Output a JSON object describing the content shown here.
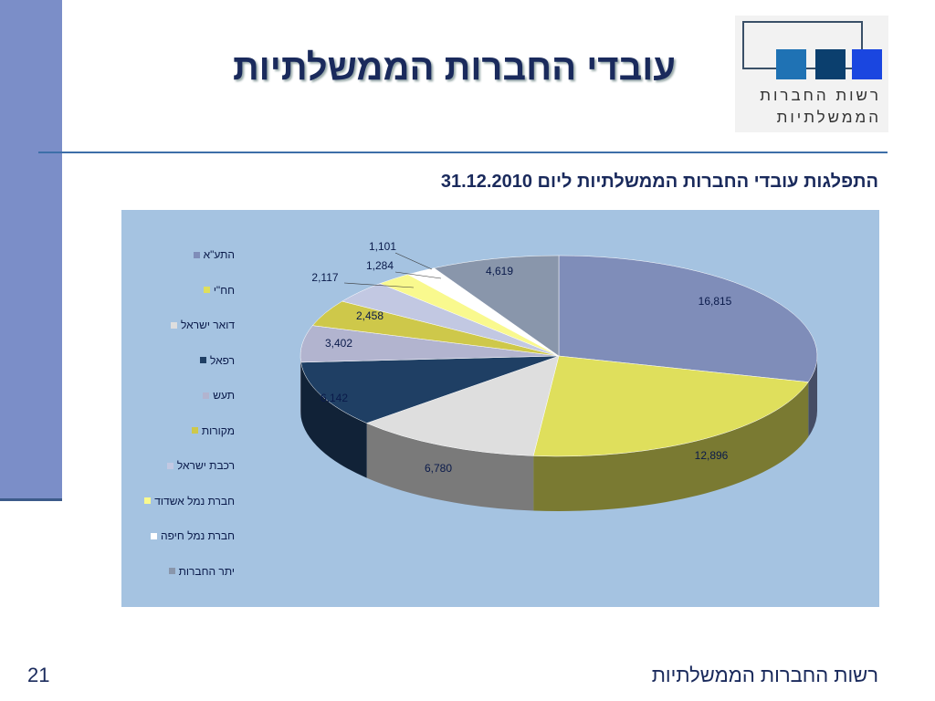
{
  "title": "עובדי החברות הממשלתיות",
  "logo": {
    "line1": "רשות החברות",
    "line2": "הממשלתיות"
  },
  "subtitle": "התפלגות עובדי החברות הממשלתיות ליום  31.12.2010",
  "footer": {
    "page_number": "21",
    "org": "רשות החברות הממשלתיות"
  },
  "chart_data": {
    "type": "pie",
    "title": "התפלגות עובדי החברות הממשלתיות ליום 31.12.2010",
    "labels": [
      "התע\"א",
      "חח\"י",
      "דואר ישראל",
      "רפאל",
      "תעש",
      "מקורות",
      "רכבת ישראל",
      "חברת נמל אשדוד",
      "חברת נמל חיפה",
      "יתר החברות"
    ],
    "values": [
      16815,
      12896,
      6780,
      6142,
      3402,
      2458,
      2117,
      1284,
      1101,
      4619
    ],
    "value_labels": [
      "16,815",
      "12,896",
      "6,780",
      "6,142",
      "3,402",
      "2,458",
      "2,117",
      "1,284",
      "1,101",
      "4,619"
    ],
    "colors": [
      "#7f8db9",
      "#dfdf5c",
      "#dedede",
      "#1f3f64",
      "#b2b4cf",
      "#cec84a",
      "#c2c8e2",
      "#f9f98e",
      "#ffffff",
      "#8996ab"
    ],
    "legend_position": "left"
  }
}
